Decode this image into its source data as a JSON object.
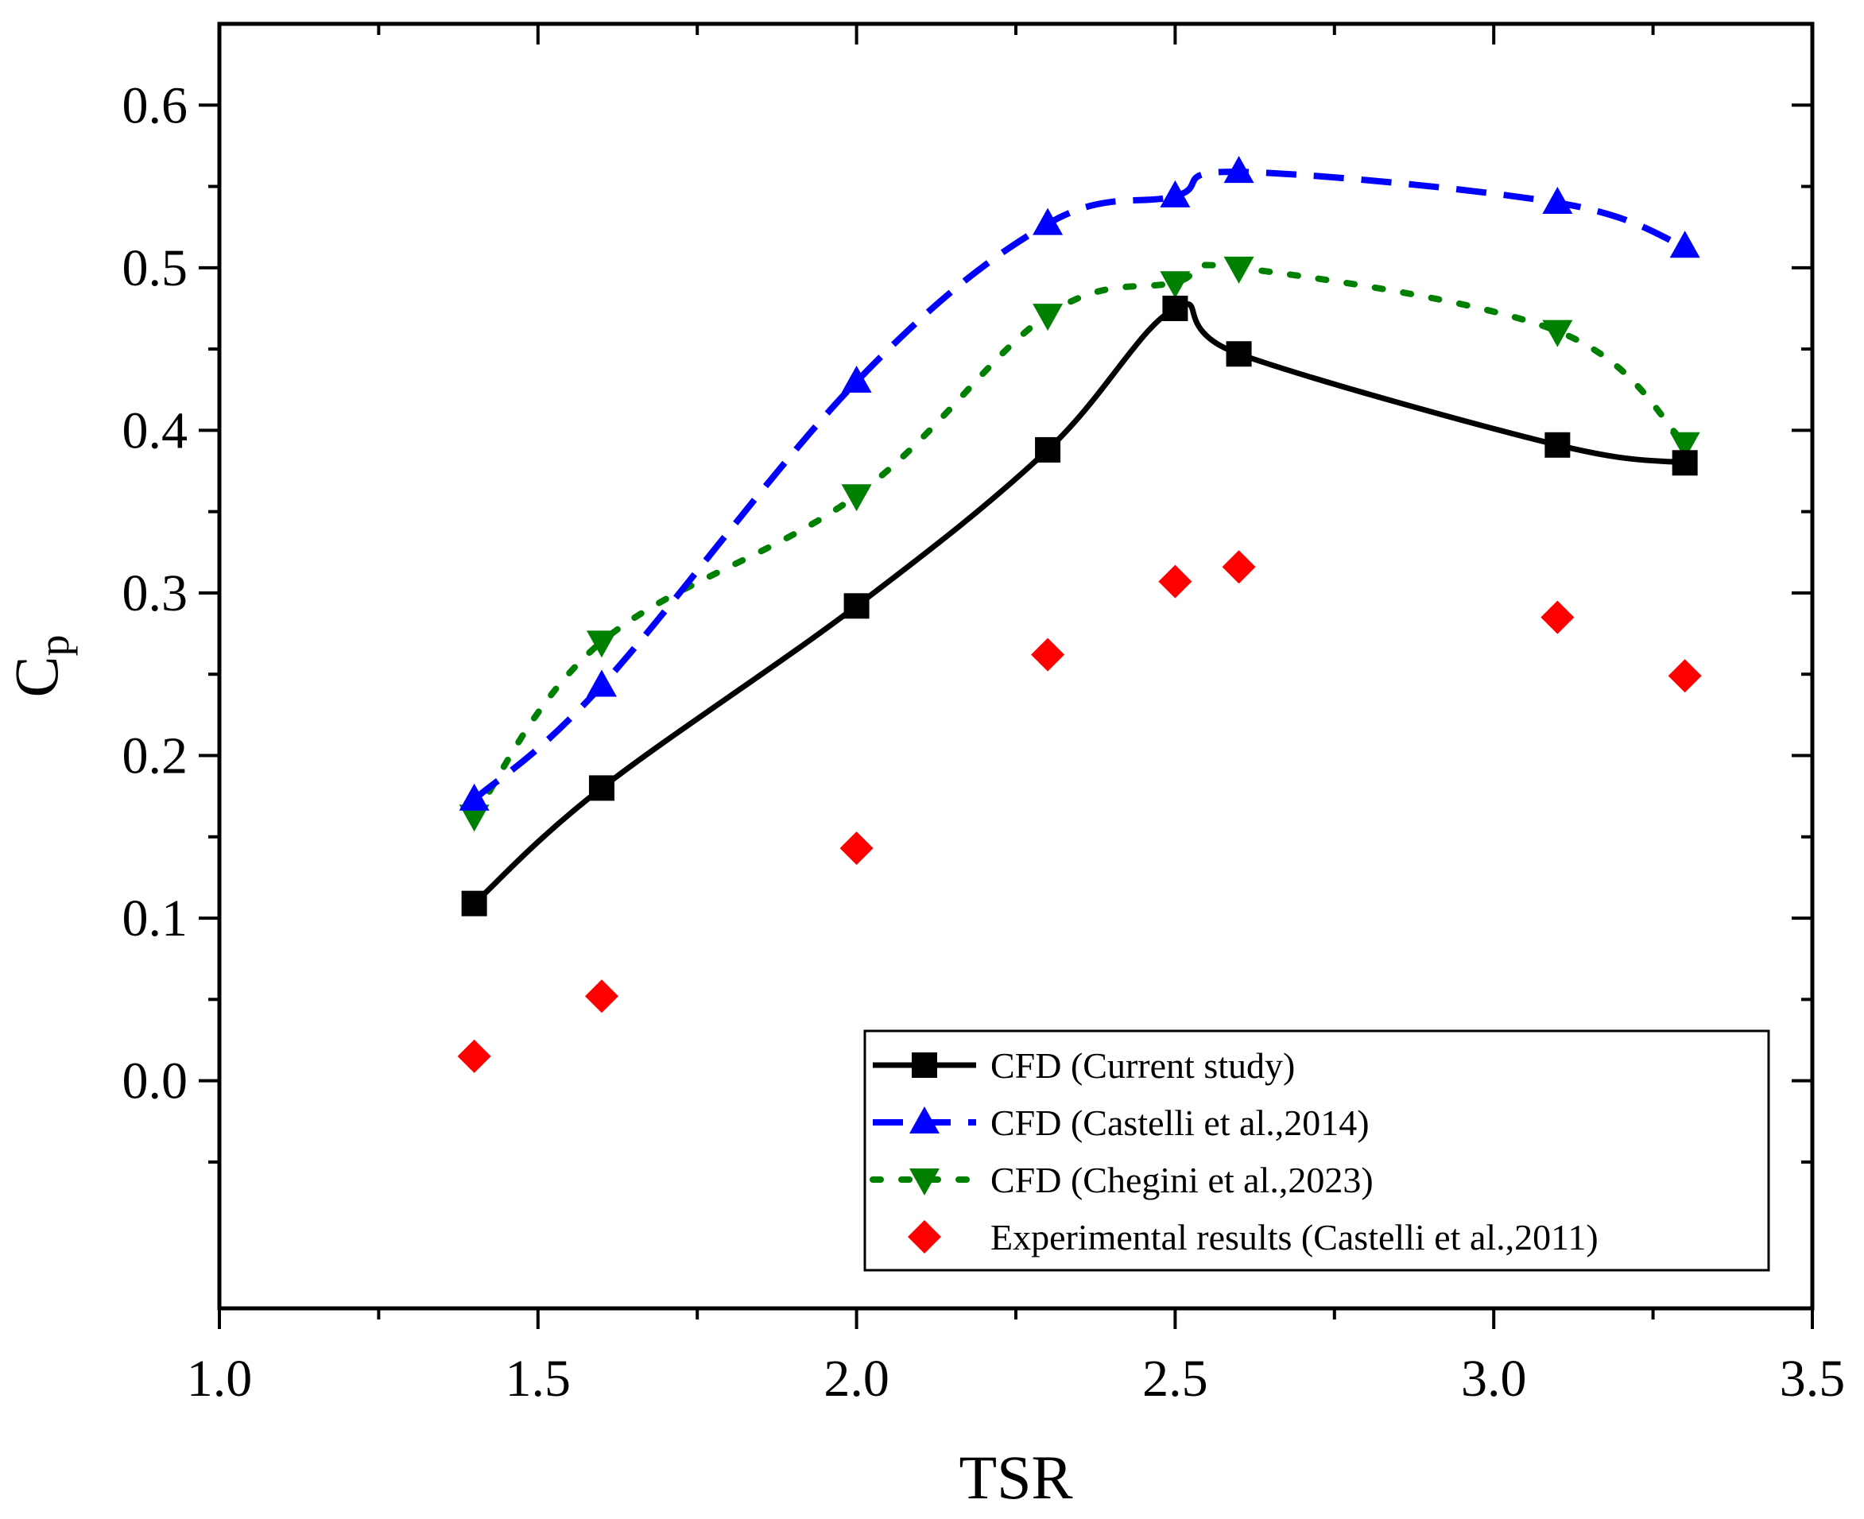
{
  "chart_data": {
    "type": "line",
    "title": "",
    "xlabel": "TSR",
    "ylabel": {
      "main": "C",
      "sub": "p"
    },
    "xlim": [
      1.0,
      3.5
    ],
    "ylim": [
      -0.14,
      0.65
    ],
    "x_ticks": [
      1.0,
      1.5,
      2.0,
      2.5,
      3.0,
      3.5
    ],
    "x_tick_labels": [
      "1.0",
      "1.5",
      "2.0",
      "2.5",
      "3.0",
      "3.5"
    ],
    "x_minor_ticks": [
      1.25,
      1.75,
      2.25,
      2.75,
      3.25
    ],
    "y_ticks": [
      0.0,
      0.1,
      0.2,
      0.3,
      0.4,
      0.5,
      0.6
    ],
    "y_tick_labels": [
      "0.0",
      "0.1",
      "0.2",
      "0.3",
      "0.4",
      "0.5",
      "0.6"
    ],
    "y_minor_ticks": [
      -0.05,
      0.05,
      0.15,
      0.25,
      0.35,
      0.45,
      0.55
    ],
    "grid": false,
    "legend_position": "bottom-right",
    "series": [
      {
        "name": "CFD (Current study)",
        "color": "#000000",
        "marker": "square",
        "line_style": "solid",
        "x": [
          1.4,
          1.6,
          2.0,
          2.3,
          2.5,
          2.6,
          3.1,
          3.3
        ],
        "y": [
          0.109,
          0.18,
          0.292,
          0.388,
          0.475,
          0.447,
          0.391,
          0.38
        ]
      },
      {
        "name": "CFD (Castelli et al.,2014)",
        "color": "#0000ff",
        "marker": "triangle-up",
        "line_style": "dashed",
        "x": [
          1.4,
          1.6,
          2.0,
          2.3,
          2.5,
          2.6,
          3.1,
          3.3
        ],
        "y": [
          0.173,
          0.243,
          0.43,
          0.527,
          0.544,
          0.559,
          0.54,
          0.513
        ]
      },
      {
        "name": "CFD (Chegini et al.,2023)",
        "color": "#008000",
        "marker": "triangle-down",
        "line_style": "dotted",
        "x": [
          1.4,
          1.6,
          2.0,
          2.3,
          2.5,
          2.6,
          3.1,
          3.3
        ],
        "y": [
          0.163,
          0.27,
          0.36,
          0.471,
          0.491,
          0.5,
          0.461,
          0.392
        ]
      },
      {
        "name": "Experimental results (Castelli et al.,2011)",
        "color": "#ff0000",
        "marker": "diamond",
        "line_style": "none",
        "x": [
          1.4,
          1.6,
          2.0,
          2.3,
          2.5,
          2.6,
          3.1,
          3.3
        ],
        "y": [
          0.015,
          0.052,
          0.143,
          0.262,
          0.307,
          0.316,
          0.285,
          0.249
        ]
      }
    ]
  }
}
